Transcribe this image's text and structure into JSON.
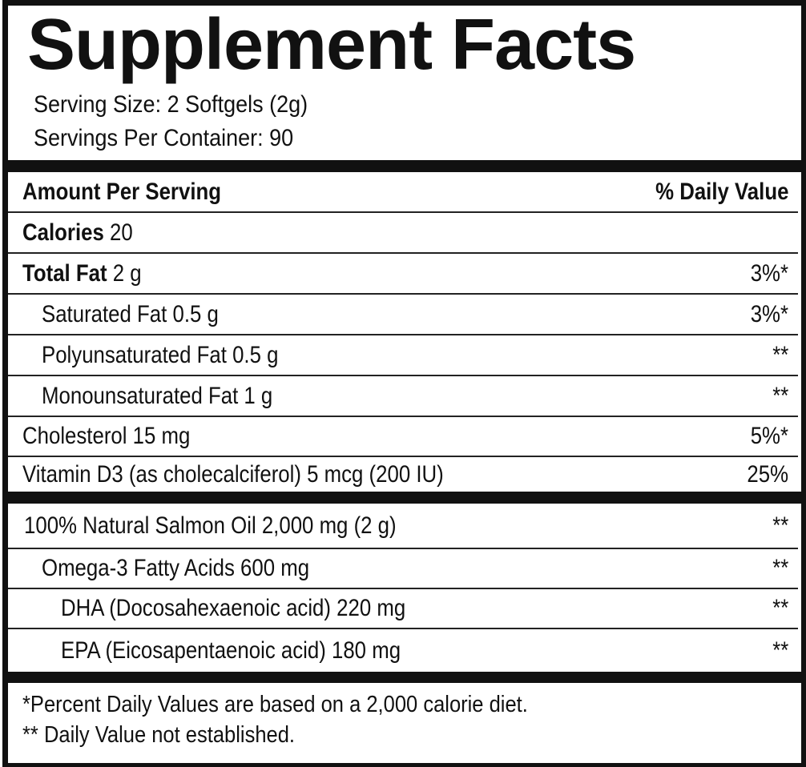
{
  "title": "Supplement Facts",
  "serving_size": "Serving Size: 2 Softgels (2g)",
  "servings_per_container": "Servings Per Container: 90",
  "header": {
    "left": "Amount Per Serving",
    "right": "% Daily Value"
  },
  "calories": {
    "label": "Calories",
    "value": "20"
  },
  "total_fat": {
    "label": "Total Fat",
    "value": "2 g",
    "dv": "3%*"
  },
  "nutrients": [
    {
      "name": "Saturated Fat 0.5 g",
      "dv": "3%*"
    },
    {
      "name": "Polyunsaturated Fat 0.5 g",
      "dv": "**"
    },
    {
      "name": "Monounsaturated Fat 1 g",
      "dv": "**"
    },
    {
      "name": "Cholesterol 15 mg",
      "dv": "5%*"
    },
    {
      "name": "Vitamin D3 (as cholecalciferol) 5 mcg (200 IU)",
      "dv": "25%"
    }
  ],
  "ingredients": [
    {
      "name": "100% Natural Salmon Oil 2,000 mg (2 g)",
      "dv": "**"
    },
    {
      "name": "Omega-3 Fatty Acids 600 mg",
      "dv": "**"
    },
    {
      "name": "DHA (Docosahexaenoic acid) 220 mg",
      "dv": "**"
    },
    {
      "name": "EPA (Eicosapentaenoic acid) 180 mg",
      "dv": "**"
    }
  ],
  "footnotes": [
    "*Percent Daily Values are based on a 2,000 calorie diet.",
    "** Daily Value not established."
  ]
}
